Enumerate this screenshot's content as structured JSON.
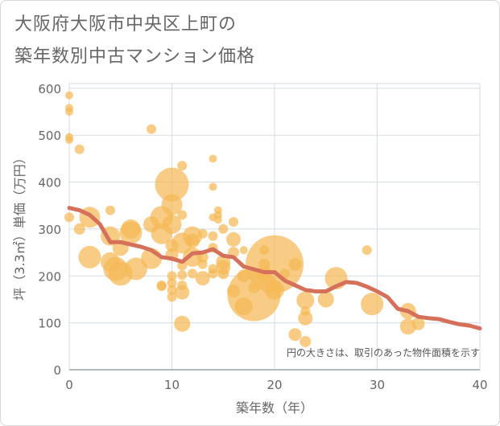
{
  "title_line1": "大阪府大阪市中央区上町の",
  "title_line2": "築年数別中古マンション価格",
  "note": "円の大きさは、取引のあった物件面積を示す",
  "colors": {
    "bubble": "#f5b955",
    "line": "#d5705a",
    "grid": "#d5dde3",
    "text": "#666666"
  },
  "chart_data": {
    "type": "scatter",
    "xlabel": "築年数（年）",
    "ylabel": "坪（3.3㎡）単価（万円）",
    "xlim": [
      0,
      40
    ],
    "ylim": [
      0,
      610
    ],
    "xticks": [
      "0",
      "10",
      "20",
      "30",
      "40"
    ],
    "yticks": [
      "0",
      "100",
      "200",
      "300",
      "400",
      "500",
      "600"
    ],
    "grid": true,
    "bubbles": [
      {
        "x": 0,
        "y": 585,
        "r": 5
      },
      {
        "x": 0,
        "y": 558,
        "r": 5
      },
      {
        "x": 0,
        "y": 550,
        "r": 5
      },
      {
        "x": 0,
        "y": 496,
        "r": 5
      },
      {
        "x": 0,
        "y": 490,
        "r": 5
      },
      {
        "x": 0,
        "y": 325,
        "r": 6
      },
      {
        "x": 1,
        "y": 470,
        "r": 6
      },
      {
        "x": 1,
        "y": 300,
        "r": 7
      },
      {
        "x": 2,
        "y": 325,
        "r": 13
      },
      {
        "x": 2,
        "y": 240,
        "r": 14
      },
      {
        "x": 4,
        "y": 340,
        "r": 6
      },
      {
        "x": 4,
        "y": 285,
        "r": 12
      },
      {
        "x": 4,
        "y": 230,
        "r": 12
      },
      {
        "x": 4.5,
        "y": 215,
        "r": 15
      },
      {
        "x": 5,
        "y": 260,
        "r": 10
      },
      {
        "x": 5,
        "y": 205,
        "r": 15
      },
      {
        "x": 6,
        "y": 300,
        "r": 12
      },
      {
        "x": 6,
        "y": 292,
        "r": 14
      },
      {
        "x": 6.5,
        "y": 215,
        "r": 14
      },
      {
        "x": 8,
        "y": 513,
        "r": 6
      },
      {
        "x": 8,
        "y": 310,
        "r": 10
      },
      {
        "x": 8,
        "y": 237,
        "r": 13
      },
      {
        "x": 9,
        "y": 325,
        "r": 14
      },
      {
        "x": 9,
        "y": 290,
        "r": 13
      },
      {
        "x": 9,
        "y": 180,
        "r": 6
      },
      {
        "x": 9,
        "y": 178,
        "r": 6
      },
      {
        "x": 10,
        "y": 395,
        "r": 21
      },
      {
        "x": 10,
        "y": 352,
        "r": 13
      },
      {
        "x": 10,
        "y": 310,
        "r": 12
      },
      {
        "x": 10,
        "y": 265,
        "r": 8
      },
      {
        "x": 10,
        "y": 245,
        "r": 8
      },
      {
        "x": 10,
        "y": 200,
        "r": 6
      },
      {
        "x": 10,
        "y": 185,
        "r": 6
      },
      {
        "x": 10,
        "y": 170,
        "r": 6
      },
      {
        "x": 10,
        "y": 155,
        "r": 6
      },
      {
        "x": 11,
        "y": 435,
        "r": 6
      },
      {
        "x": 11,
        "y": 330,
        "r": 6
      },
      {
        "x": 11,
        "y": 270,
        "r": 13
      },
      {
        "x": 11,
        "y": 222,
        "r": 6
      },
      {
        "x": 11,
        "y": 202,
        "r": 6
      },
      {
        "x": 11,
        "y": 180,
        "r": 6
      },
      {
        "x": 11,
        "y": 165,
        "r": 9
      },
      {
        "x": 11,
        "y": 98,
        "r": 10
      },
      {
        "x": 12,
        "y": 285,
        "r": 12
      },
      {
        "x": 12,
        "y": 275,
        "r": 9
      },
      {
        "x": 12,
        "y": 240,
        "r": 12
      },
      {
        "x": 12,
        "y": 205,
        "r": 6
      },
      {
        "x": 13,
        "y": 290,
        "r": 6
      },
      {
        "x": 13,
        "y": 240,
        "r": 7
      },
      {
        "x": 13,
        "y": 225,
        "r": 6
      },
      {
        "x": 13,
        "y": 195,
        "r": 9
      },
      {
        "x": 14,
        "y": 450,
        "r": 5
      },
      {
        "x": 14,
        "y": 390,
        "r": 5
      },
      {
        "x": 14,
        "y": 325,
        "r": 5
      },
      {
        "x": 14,
        "y": 285,
        "r": 6
      },
      {
        "x": 14,
        "y": 260,
        "r": 6
      },
      {
        "x": 14,
        "y": 215,
        "r": 6
      },
      {
        "x": 14,
        "y": 205,
        "r": 6
      },
      {
        "x": 14.5,
        "y": 340,
        "r": 5
      },
      {
        "x": 14.5,
        "y": 330,
        "r": 5
      },
      {
        "x": 14.5,
        "y": 320,
        "r": 5
      },
      {
        "x": 15,
        "y": 300,
        "r": 6
      },
      {
        "x": 15,
        "y": 230,
        "r": 9
      },
      {
        "x": 15,
        "y": 218,
        "r": 9
      },
      {
        "x": 15,
        "y": 205,
        "r": 7
      },
      {
        "x": 16,
        "y": 315,
        "r": 6
      },
      {
        "x": 16,
        "y": 278,
        "r": 9
      },
      {
        "x": 16,
        "y": 250,
        "r": 7
      },
      {
        "x": 16,
        "y": 168,
        "r": 8
      },
      {
        "x": 17,
        "y": 255,
        "r": 5
      },
      {
        "x": 17,
        "y": 200,
        "r": 8
      },
      {
        "x": 17,
        "y": 135,
        "r": 11
      },
      {
        "x": 18,
        "y": 160,
        "r": 33
      },
      {
        "x": 18,
        "y": 175,
        "r": 7
      },
      {
        "x": 19,
        "y": 255,
        "r": 6
      },
      {
        "x": 19,
        "y": 225,
        "r": 7
      },
      {
        "x": 19,
        "y": 205,
        "r": 9
      },
      {
        "x": 20,
        "y": 225,
        "r": 36
      },
      {
        "x": 20,
        "y": 170,
        "r": 12
      },
      {
        "x": 21,
        "y": 205,
        "r": 6
      },
      {
        "x": 22,
        "y": 225,
        "r": 8
      },
      {
        "x": 22,
        "y": 75,
        "r": 8
      },
      {
        "x": 23,
        "y": 148,
        "r": 11
      },
      {
        "x": 23,
        "y": 125,
        "r": 6
      },
      {
        "x": 23,
        "y": 110,
        "r": 9
      },
      {
        "x": 23,
        "y": 60,
        "r": 7
      },
      {
        "x": 25,
        "y": 150,
        "r": 10
      },
      {
        "x": 26,
        "y": 195,
        "r": 14
      },
      {
        "x": 29,
        "y": 255,
        "r": 6
      },
      {
        "x": 29.5,
        "y": 140,
        "r": 14
      },
      {
        "x": 33,
        "y": 125,
        "r": 10
      },
      {
        "x": 33,
        "y": 92,
        "r": 10
      },
      {
        "x": 34,
        "y": 98,
        "r": 8
      }
    ],
    "line": {
      "x": [
        0,
        1,
        2,
        3,
        4,
        5,
        6,
        7,
        8,
        9,
        10,
        11,
        12,
        13,
        14,
        15,
        16,
        17,
        18,
        19,
        20,
        21,
        22,
        23,
        24,
        25,
        26,
        27,
        28,
        29,
        30,
        31,
        32,
        33,
        34,
        35,
        36,
        37,
        38,
        39,
        40
      ],
      "y": [
        345,
        340,
        330,
        310,
        272,
        272,
        267,
        262,
        255,
        240,
        237,
        230,
        248,
        250,
        257,
        243,
        240,
        220,
        214,
        208,
        208,
        190,
        180,
        170,
        167,
        167,
        178,
        187,
        185,
        177,
        167,
        155,
        130,
        125,
        113,
        110,
        108,
        102,
        97,
        94,
        88
      ]
    }
  }
}
